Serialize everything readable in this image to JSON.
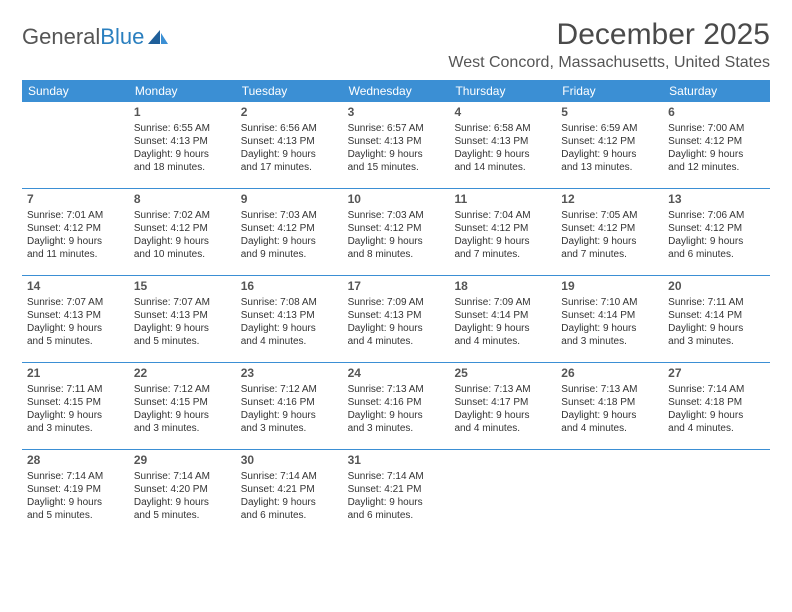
{
  "brand": {
    "text_general": "General",
    "text_blue": "Blue"
  },
  "title": "December 2025",
  "location": "West Concord, Massachusetts, United States",
  "day_headers": [
    "Sunday",
    "Monday",
    "Tuesday",
    "Wednesday",
    "Thursday",
    "Friday",
    "Saturday"
  ],
  "colors": {
    "header_bg": "#3b8fd4",
    "header_text": "#ffffff",
    "divider": "#3b8fd4",
    "body_text": "#333333",
    "title_text": "#4a4a4a",
    "brand_gray": "#555555",
    "brand_blue": "#2a7fbf",
    "background": "#ffffff"
  },
  "typography": {
    "title_fontsize": 30,
    "location_fontsize": 16,
    "dayheader_fontsize": 12,
    "daynum_fontsize": 12,
    "cell_fontsize": 10,
    "brand_fontsize": 22
  },
  "layout": {
    "columns": 7,
    "rows": 5,
    "first_day_column": 1
  },
  "weeks": [
    [
      null,
      {
        "n": "1",
        "sunrise": "Sunrise: 6:55 AM",
        "sunset": "Sunset: 4:13 PM",
        "dl1": "Daylight: 9 hours",
        "dl2": "and 18 minutes."
      },
      {
        "n": "2",
        "sunrise": "Sunrise: 6:56 AM",
        "sunset": "Sunset: 4:13 PM",
        "dl1": "Daylight: 9 hours",
        "dl2": "and 17 minutes."
      },
      {
        "n": "3",
        "sunrise": "Sunrise: 6:57 AM",
        "sunset": "Sunset: 4:13 PM",
        "dl1": "Daylight: 9 hours",
        "dl2": "and 15 minutes."
      },
      {
        "n": "4",
        "sunrise": "Sunrise: 6:58 AM",
        "sunset": "Sunset: 4:13 PM",
        "dl1": "Daylight: 9 hours",
        "dl2": "and 14 minutes."
      },
      {
        "n": "5",
        "sunrise": "Sunrise: 6:59 AM",
        "sunset": "Sunset: 4:12 PM",
        "dl1": "Daylight: 9 hours",
        "dl2": "and 13 minutes."
      },
      {
        "n": "6",
        "sunrise": "Sunrise: 7:00 AM",
        "sunset": "Sunset: 4:12 PM",
        "dl1": "Daylight: 9 hours",
        "dl2": "and 12 minutes."
      }
    ],
    [
      {
        "n": "7",
        "sunrise": "Sunrise: 7:01 AM",
        "sunset": "Sunset: 4:12 PM",
        "dl1": "Daylight: 9 hours",
        "dl2": "and 11 minutes."
      },
      {
        "n": "8",
        "sunrise": "Sunrise: 7:02 AM",
        "sunset": "Sunset: 4:12 PM",
        "dl1": "Daylight: 9 hours",
        "dl2": "and 10 minutes."
      },
      {
        "n": "9",
        "sunrise": "Sunrise: 7:03 AM",
        "sunset": "Sunset: 4:12 PM",
        "dl1": "Daylight: 9 hours",
        "dl2": "and 9 minutes."
      },
      {
        "n": "10",
        "sunrise": "Sunrise: 7:03 AM",
        "sunset": "Sunset: 4:12 PM",
        "dl1": "Daylight: 9 hours",
        "dl2": "and 8 minutes."
      },
      {
        "n": "11",
        "sunrise": "Sunrise: 7:04 AM",
        "sunset": "Sunset: 4:12 PM",
        "dl1": "Daylight: 9 hours",
        "dl2": "and 7 minutes."
      },
      {
        "n": "12",
        "sunrise": "Sunrise: 7:05 AM",
        "sunset": "Sunset: 4:12 PM",
        "dl1": "Daylight: 9 hours",
        "dl2": "and 7 minutes."
      },
      {
        "n": "13",
        "sunrise": "Sunrise: 7:06 AM",
        "sunset": "Sunset: 4:12 PM",
        "dl1": "Daylight: 9 hours",
        "dl2": "and 6 minutes."
      }
    ],
    [
      {
        "n": "14",
        "sunrise": "Sunrise: 7:07 AM",
        "sunset": "Sunset: 4:13 PM",
        "dl1": "Daylight: 9 hours",
        "dl2": "and 5 minutes."
      },
      {
        "n": "15",
        "sunrise": "Sunrise: 7:07 AM",
        "sunset": "Sunset: 4:13 PM",
        "dl1": "Daylight: 9 hours",
        "dl2": "and 5 minutes."
      },
      {
        "n": "16",
        "sunrise": "Sunrise: 7:08 AM",
        "sunset": "Sunset: 4:13 PM",
        "dl1": "Daylight: 9 hours",
        "dl2": "and 4 minutes."
      },
      {
        "n": "17",
        "sunrise": "Sunrise: 7:09 AM",
        "sunset": "Sunset: 4:13 PM",
        "dl1": "Daylight: 9 hours",
        "dl2": "and 4 minutes."
      },
      {
        "n": "18",
        "sunrise": "Sunrise: 7:09 AM",
        "sunset": "Sunset: 4:14 PM",
        "dl1": "Daylight: 9 hours",
        "dl2": "and 4 minutes."
      },
      {
        "n": "19",
        "sunrise": "Sunrise: 7:10 AM",
        "sunset": "Sunset: 4:14 PM",
        "dl1": "Daylight: 9 hours",
        "dl2": "and 3 minutes."
      },
      {
        "n": "20",
        "sunrise": "Sunrise: 7:11 AM",
        "sunset": "Sunset: 4:14 PM",
        "dl1": "Daylight: 9 hours",
        "dl2": "and 3 minutes."
      }
    ],
    [
      {
        "n": "21",
        "sunrise": "Sunrise: 7:11 AM",
        "sunset": "Sunset: 4:15 PM",
        "dl1": "Daylight: 9 hours",
        "dl2": "and 3 minutes."
      },
      {
        "n": "22",
        "sunrise": "Sunrise: 7:12 AM",
        "sunset": "Sunset: 4:15 PM",
        "dl1": "Daylight: 9 hours",
        "dl2": "and 3 minutes."
      },
      {
        "n": "23",
        "sunrise": "Sunrise: 7:12 AM",
        "sunset": "Sunset: 4:16 PM",
        "dl1": "Daylight: 9 hours",
        "dl2": "and 3 minutes."
      },
      {
        "n": "24",
        "sunrise": "Sunrise: 7:13 AM",
        "sunset": "Sunset: 4:16 PM",
        "dl1": "Daylight: 9 hours",
        "dl2": "and 3 minutes."
      },
      {
        "n": "25",
        "sunrise": "Sunrise: 7:13 AM",
        "sunset": "Sunset: 4:17 PM",
        "dl1": "Daylight: 9 hours",
        "dl2": "and 4 minutes."
      },
      {
        "n": "26",
        "sunrise": "Sunrise: 7:13 AM",
        "sunset": "Sunset: 4:18 PM",
        "dl1": "Daylight: 9 hours",
        "dl2": "and 4 minutes."
      },
      {
        "n": "27",
        "sunrise": "Sunrise: 7:14 AM",
        "sunset": "Sunset: 4:18 PM",
        "dl1": "Daylight: 9 hours",
        "dl2": "and 4 minutes."
      }
    ],
    [
      {
        "n": "28",
        "sunrise": "Sunrise: 7:14 AM",
        "sunset": "Sunset: 4:19 PM",
        "dl1": "Daylight: 9 hours",
        "dl2": "and 5 minutes."
      },
      {
        "n": "29",
        "sunrise": "Sunrise: 7:14 AM",
        "sunset": "Sunset: 4:20 PM",
        "dl1": "Daylight: 9 hours",
        "dl2": "and 5 minutes."
      },
      {
        "n": "30",
        "sunrise": "Sunrise: 7:14 AM",
        "sunset": "Sunset: 4:21 PM",
        "dl1": "Daylight: 9 hours",
        "dl2": "and 6 minutes."
      },
      {
        "n": "31",
        "sunrise": "Sunrise: 7:14 AM",
        "sunset": "Sunset: 4:21 PM",
        "dl1": "Daylight: 9 hours",
        "dl2": "and 6 minutes."
      },
      null,
      null,
      null
    ]
  ]
}
